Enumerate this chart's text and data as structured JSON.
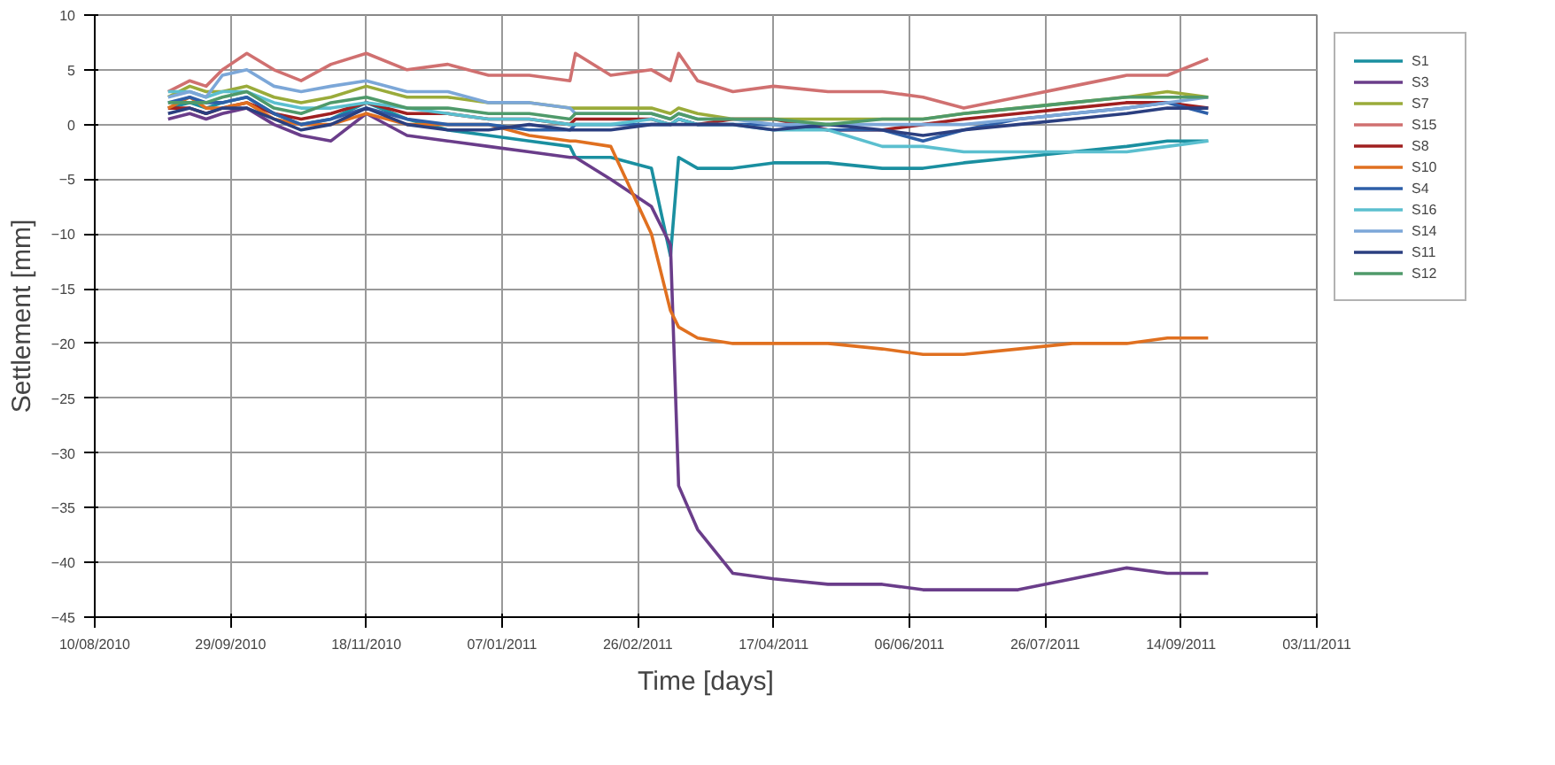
{
  "chart_data": {
    "type": "line",
    "xlabel": "Time [days]",
    "ylabel": "Settlement [mm]",
    "grid": true,
    "legend": "top right",
    "marker": "none",
    "line_style": "solid",
    "xlim": [
      "2010-08-10",
      "2011-11-03"
    ],
    "ylim": [
      -45,
      10
    ],
    "xticks": [
      {
        "value": "2010-08-10",
        "label": "10/08/2010"
      },
      {
        "value": "2010-09-29",
        "label": "29/09/2010"
      },
      {
        "value": "2010-11-18",
        "label": "18/11/2010"
      },
      {
        "value": "2011-01-07",
        "label": "07/01/2011"
      },
      {
        "value": "2011-02-26",
        "label": "26/02/2011"
      },
      {
        "value": "2011-04-17",
        "label": "17/04/2011"
      },
      {
        "value": "2011-06-06",
        "label": "06/06/2011"
      },
      {
        "value": "2011-07-26",
        "label": "26/07/2011"
      },
      {
        "value": "2011-09-14",
        "label": "14/09/2011"
      },
      {
        "value": "2011-11-03",
        "label": "03/11/2011"
      }
    ],
    "yticks": [
      10,
      5,
      0,
      -5,
      -10,
      -15,
      -20,
      -25,
      -30,
      -35,
      -40,
      -45
    ],
    "x": [
      "2010-09-06",
      "2010-09-14",
      "2010-09-20",
      "2010-09-26",
      "2010-10-05",
      "2010-10-15",
      "2010-10-25",
      "2010-11-05",
      "2010-11-18",
      "2010-12-03",
      "2010-12-18",
      "2011-01-02",
      "2011-01-17",
      "2011-02-01",
      "2011-02-03",
      "2011-02-16",
      "2011-03-03",
      "2011-03-10",
      "2011-03-13",
      "2011-03-20",
      "2011-04-02",
      "2011-04-17",
      "2011-05-07",
      "2011-05-27",
      "2011-06-11",
      "2011-06-26",
      "2011-07-16",
      "2011-08-05",
      "2011-08-25",
      "2011-09-09",
      "2011-09-24"
    ],
    "series": [
      {
        "name": "S1",
        "color": "#1a8fa0",
        "values": [
          1.5,
          2,
          1.5,
          2,
          2.5,
          1,
          0,
          0.5,
          2,
          0.5,
          -0.5,
          -1,
          -1.5,
          -2,
          -3,
          -3,
          -4,
          -12,
          -3,
          -4,
          -4,
          -3.5,
          -3.5,
          -4,
          -4,
          -3.5,
          -3,
          -2.5,
          -2,
          -1.5,
          -1.5
        ]
      },
      {
        "name": "S3",
        "color": "#6a3d8a",
        "values": [
          0.5,
          1,
          0.5,
          1,
          1.5,
          0,
          -1,
          -1.5,
          1,
          -1,
          -1.5,
          -2,
          -2.5,
          -3,
          -3,
          -5,
          -7.5,
          -11,
          -33,
          -37,
          -41,
          -41.5,
          -42,
          -42,
          -42.5,
          -42.5,
          -42.5,
          -41.5,
          -40.5,
          -41,
          -41
        ]
      },
      {
        "name": "S7",
        "color": "#9aab3a",
        "values": [
          2.5,
          3.5,
          3,
          3,
          3.5,
          2.5,
          2,
          2.5,
          3.5,
          2.5,
          2.5,
          2,
          2,
          1.5,
          1.5,
          1.5,
          1.5,
          1,
          1.5,
          1,
          0.5,
          0.5,
          0.5,
          0.5,
          0.5,
          1,
          1.5,
          2,
          2.5,
          3,
          2.5
        ]
      },
      {
        "name": "S15",
        "color": "#d07070",
        "values": [
          3,
          4,
          3.5,
          5,
          6.5,
          5,
          4,
          5.5,
          6.5,
          5,
          5.5,
          4.5,
          4.5,
          4,
          6.5,
          4.5,
          5,
          4,
          6.5,
          4,
          3,
          3.5,
          3,
          3,
          2.5,
          1.5,
          2.5,
          3.5,
          4.5,
          4.5,
          6
        ]
      },
      {
        "name": "S8",
        "color": "#a02020",
        "values": [
          1.5,
          1.5,
          1,
          1.5,
          2,
          1,
          0.5,
          1,
          2,
          1,
          1,
          0.5,
          0.5,
          0,
          0.5,
          0.5,
          0.5,
          0,
          0.5,
          0,
          0.5,
          0.5,
          -0.5,
          -0.5,
          0,
          0.5,
          1,
          1.5,
          2,
          2,
          1.5
        ]
      },
      {
        "name": "S10",
        "color": "#e07020",
        "values": [
          1.5,
          2.5,
          1.5,
          1.5,
          2,
          0.5,
          0,
          0,
          1,
          0,
          0,
          0,
          -1,
          -1.5,
          -1.5,
          -2,
          -10,
          -17,
          -18.5,
          -19.5,
          -20,
          -20,
          -20,
          -20.5,
          -21,
          -21,
          -20.5,
          -20,
          -20,
          -19.5,
          -19.5
        ]
      },
      {
        "name": "S4",
        "color": "#2e5fa8",
        "values": [
          2,
          2.5,
          2,
          2,
          2.5,
          1,
          0,
          0.5,
          1.5,
          0.5,
          0,
          0,
          -0.5,
          -0.5,
          0,
          0,
          0,
          0,
          0.5,
          0,
          0,
          0,
          -0.5,
          -0.5,
          -1.5,
          -0.5,
          0.5,
          1,
          1.5,
          2,
          1
        ]
      },
      {
        "name": "S16",
        "color": "#5bbfcf",
        "values": [
          3,
          3,
          2.5,
          3,
          3,
          2,
          1.5,
          1.5,
          2,
          1.5,
          1,
          0.5,
          0.5,
          0,
          0,
          0,
          0.5,
          0,
          0.5,
          0,
          0,
          -0.5,
          -0.5,
          -2,
          -2,
          -2.5,
          -2.5,
          -2.5,
          -2.5,
          -2,
          -1.5
        ]
      },
      {
        "name": "S14",
        "color": "#7ca7d8",
        "values": [
          2.5,
          3,
          2.5,
          4.5,
          5,
          3.5,
          3,
          3.5,
          4,
          3,
          3,
          2,
          2,
          1.5,
          1,
          1,
          1,
          0.5,
          1,
          0.5,
          0.5,
          0,
          0,
          0,
          0,
          0,
          0.5,
          1,
          1.5,
          2,
          2.5
        ]
      },
      {
        "name": "S11",
        "color": "#2b3f80",
        "values": [
          1,
          1.5,
          1,
          1.5,
          1.5,
          0.5,
          -0.5,
          0,
          1.5,
          0,
          -0.5,
          -0.5,
          0,
          -0.5,
          -0.5,
          -0.5,
          0,
          0,
          0,
          0,
          0,
          -0.5,
          0,
          -0.5,
          -1,
          -0.5,
          0,
          0.5,
          1,
          1.5,
          1.5
        ]
      },
      {
        "name": "S12",
        "color": "#4f9a6a",
        "values": [
          2,
          2,
          2,
          2.5,
          3,
          1.5,
          1,
          2,
          2.5,
          1.5,
          1.5,
          1,
          1,
          0.5,
          1,
          1,
          1,
          0.5,
          1,
          0.5,
          0.5,
          0.5,
          0,
          0.5,
          0.5,
          1,
          1.5,
          2,
          2.5,
          2.5,
          2.5
        ]
      }
    ]
  }
}
